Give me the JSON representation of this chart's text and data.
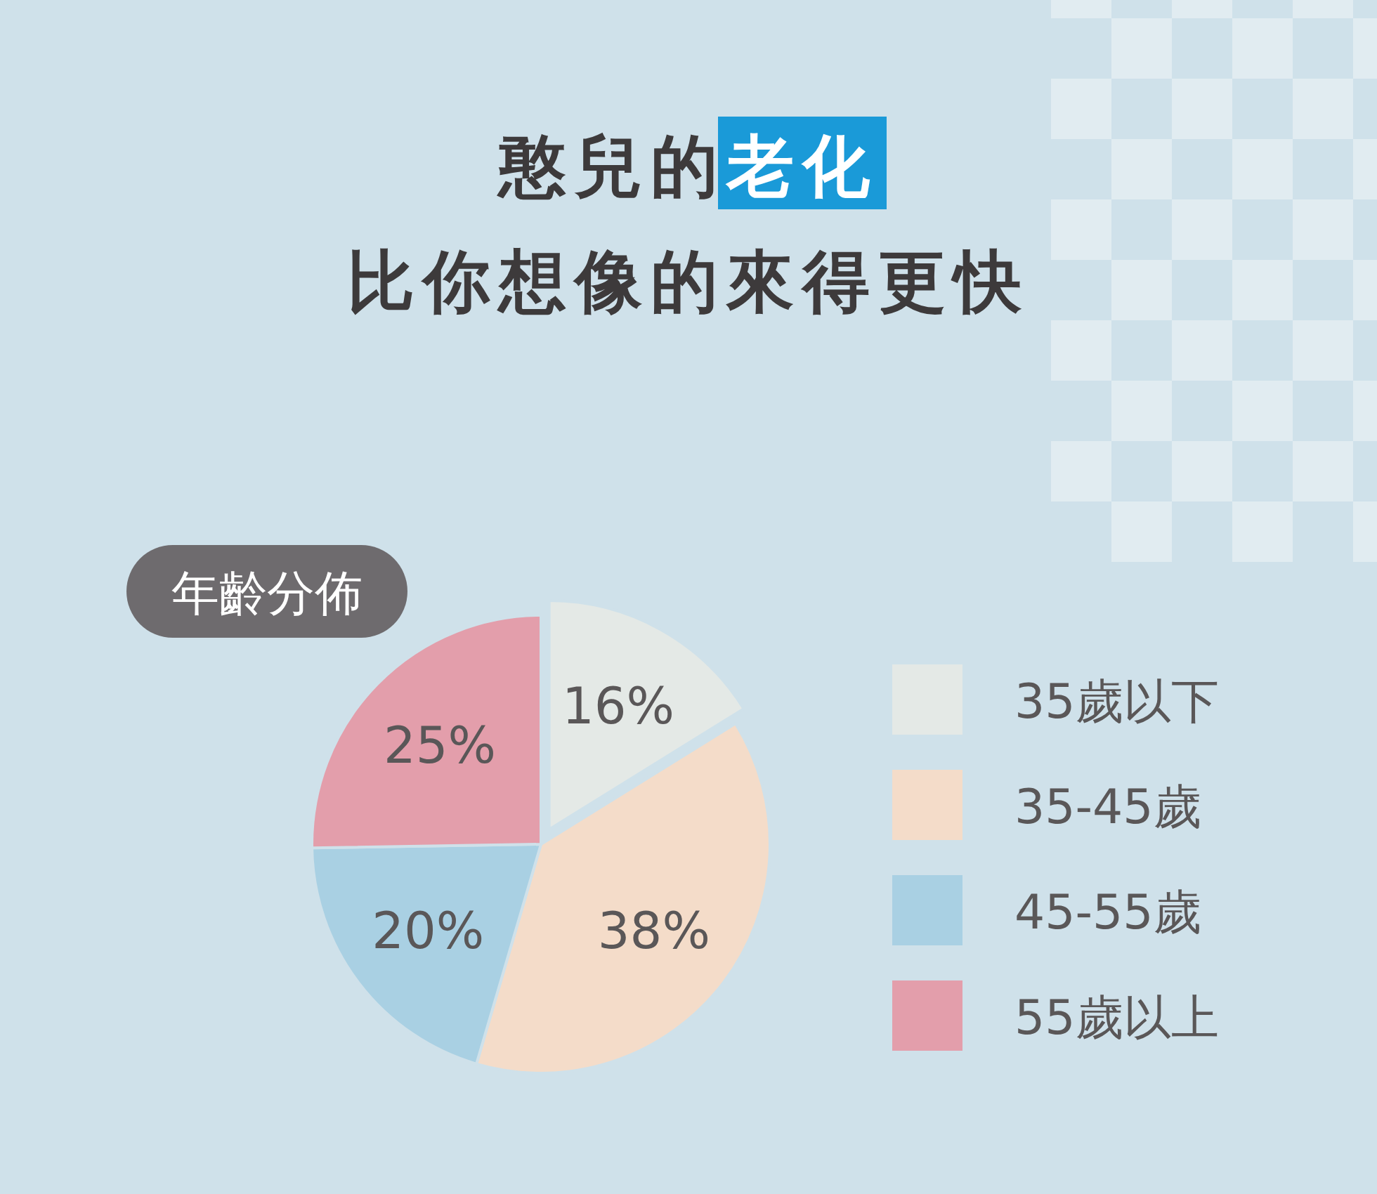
{
  "chart_data": {
    "type": "pie",
    "title": "憨兒的老化比你想像的來得更快",
    "subtitle": "年齡分佈",
    "categories": [
      "35歲以下",
      "35-45歲",
      "45-55歲",
      "55歲以上"
    ],
    "values": [
      16,
      38,
      20,
      25
    ],
    "colors": [
      "#e4e9e6",
      "#f4dcc9",
      "#a9d0e3",
      "#e39eab"
    ],
    "value_labels": [
      "16%",
      "38%",
      "20%",
      "25%"
    ],
    "legend": "right"
  }
}
